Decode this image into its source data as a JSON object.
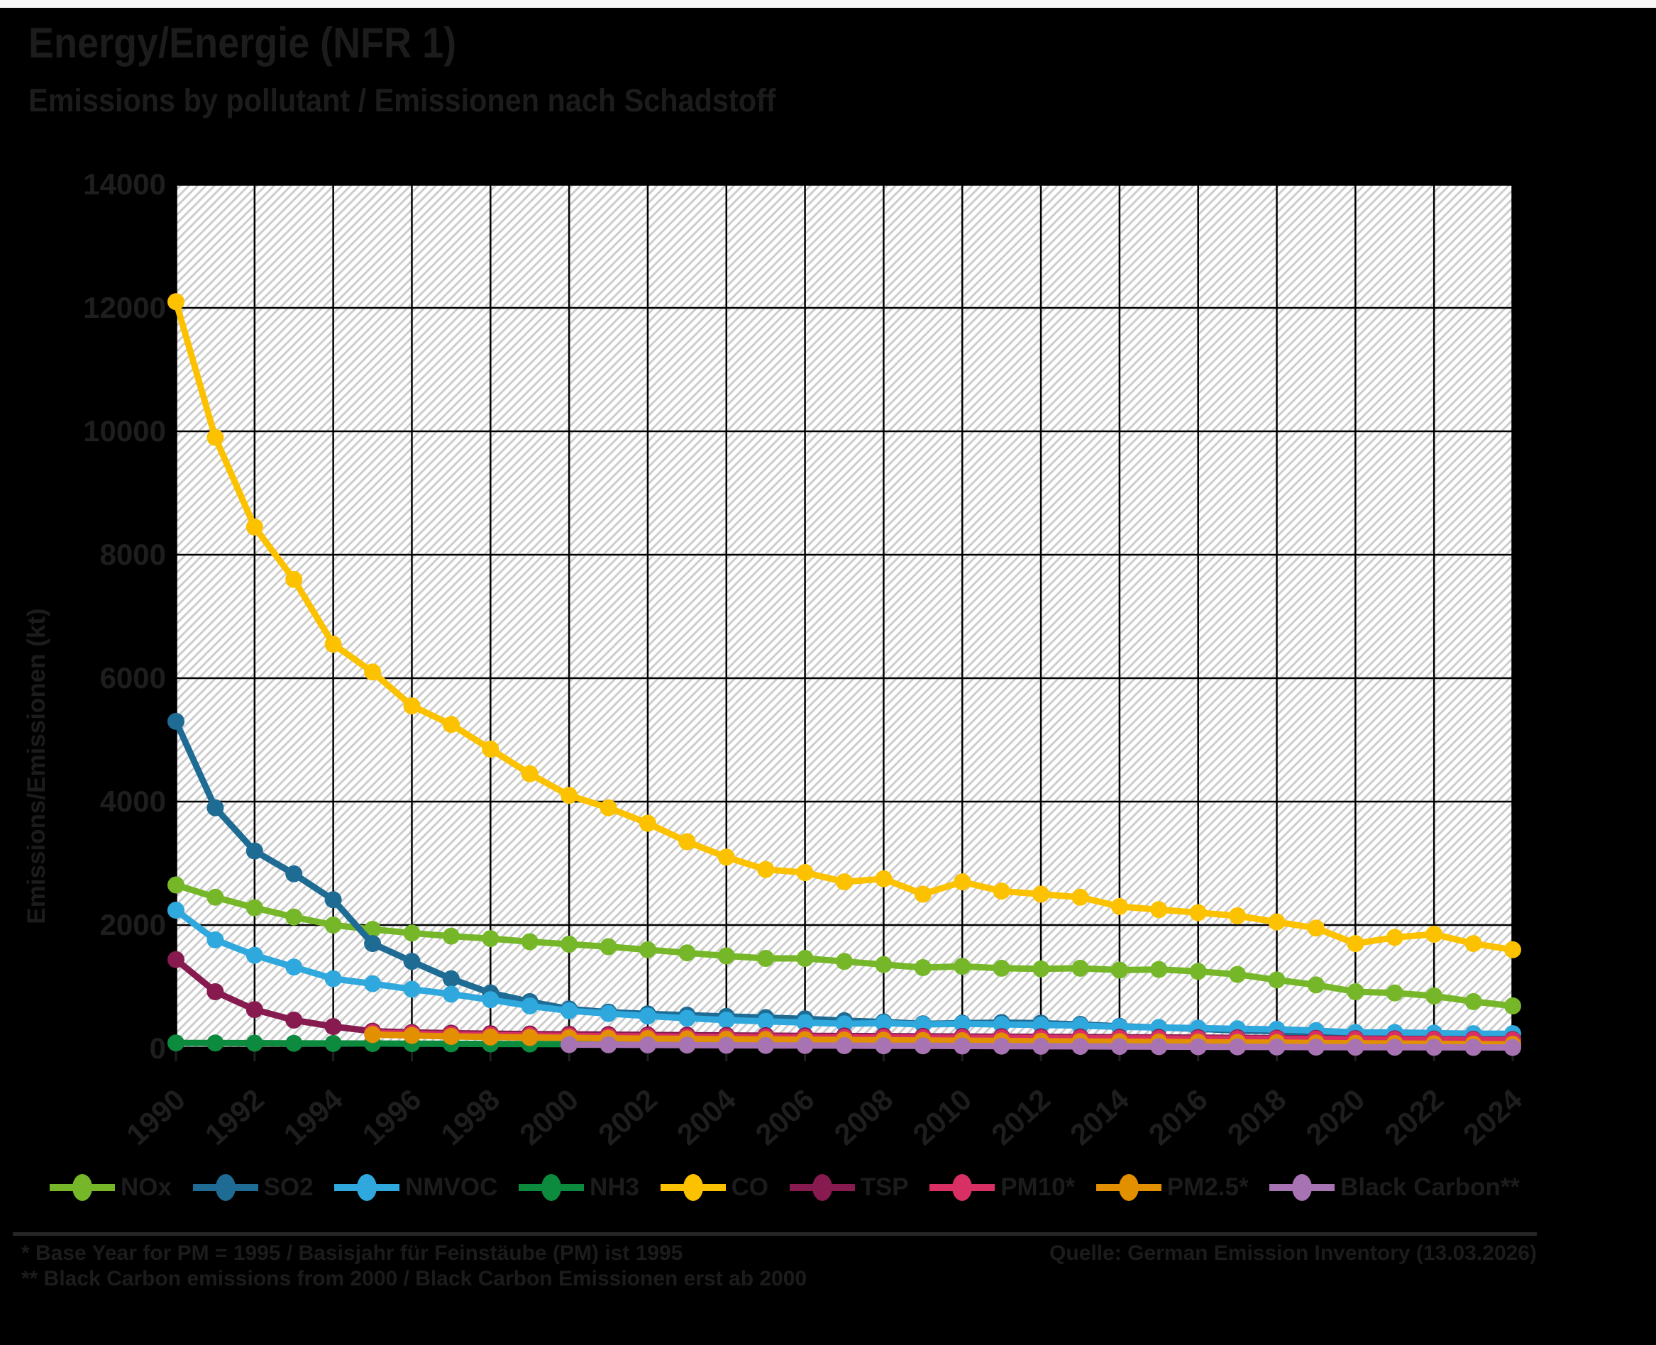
{
  "page": {
    "background": "#000000",
    "top_strip_color": "#f6f6f6",
    "text_color": "#1c1c1c"
  },
  "header": {
    "title": "Energy/Energie (NFR 1)",
    "subtitle": "Emissions by pollutant / Emissionen nach Schadstoff"
  },
  "chart_data": {
    "type": "line",
    "title": "Energy/Energie (NFR 1) — Emissions by pollutant / Emissionen nach Schadstoff",
    "xlabel": "",
    "ylabel": "Emissions/Emissionen (kt)",
    "ylim": [
      0,
      14000
    ],
    "ytick_step": 2000,
    "yticks": [
      0,
      2000,
      4000,
      6000,
      8000,
      10000,
      12000,
      14000
    ],
    "x_start": 1990,
    "x_end": 2024,
    "xtick_step": 2,
    "xticks": [
      1990,
      1992,
      1994,
      1996,
      1998,
      2000,
      2002,
      2004,
      2006,
      2008,
      2010,
      2012,
      2014,
      2016,
      2018,
      2020,
      2022,
      2024
    ],
    "grid": true,
    "plot_background": "white-with-gray-diagonal-hatch",
    "legend_position": "bottom",
    "series": [
      {
        "name": "NOx",
        "color": "#76b72a",
        "start_year": 1990,
        "values": [
          2650,
          2450,
          2280,
          2130,
          2000,
          1930,
          1870,
          1820,
          1780,
          1730,
          1690,
          1650,
          1600,
          1550,
          1500,
          1460,
          1460,
          1410,
          1360,
          1310,
          1330,
          1300,
          1290,
          1300,
          1270,
          1280,
          1250,
          1200,
          1110,
          1030,
          920,
          900,
          850,
          760,
          690
        ]
      },
      {
        "name": "SO2",
        "color": "#1e6b94",
        "start_year": 1990,
        "values": [
          5300,
          3900,
          3200,
          2830,
          2410,
          1700,
          1410,
          1130,
          900,
          760,
          640,
          590,
          560,
          540,
          520,
          500,
          480,
          450,
          430,
          400,
          410,
          420,
          410,
          390,
          360,
          340,
          320,
          290,
          280,
          230,
          200,
          210,
          220,
          160,
          150
        ]
      },
      {
        "name": "NMVOC",
        "color": "#2fa8dd",
        "start_year": 1990,
        "values": [
          2240,
          1760,
          1510,
          1320,
          1130,
          1050,
          960,
          880,
          790,
          690,
          610,
          565,
          525,
          490,
          460,
          440,
          420,
          400,
          410,
          390,
          400,
          390,
          380,
          370,
          350,
          340,
          330,
          320,
          310,
          290,
          260,
          260,
          250,
          240,
          240
        ]
      },
      {
        "name": "NH3",
        "color": "#0c8a3e",
        "start_year": 1990,
        "values": [
          90,
          88,
          86,
          84,
          82,
          80,
          78,
          76,
          74,
          72,
          70,
          68,
          66,
          64,
          62,
          60,
          58,
          57,
          56,
          55,
          54,
          53,
          52,
          51,
          50,
          49,
          48,
          47,
          46,
          45,
          44,
          43,
          42,
          41,
          40
        ]
      },
      {
        "name": "CO",
        "color": "#fcc200",
        "start_year": 1990,
        "values": [
          12100,
          9900,
          8450,
          7600,
          6550,
          6100,
          5550,
          5250,
          4850,
          4450,
          4100,
          3900,
          3650,
          3350,
          3100,
          2900,
          2850,
          2700,
          2750,
          2500,
          2700,
          2550,
          2500,
          2450,
          2300,
          2250,
          2200,
          2150,
          2050,
          1950,
          1700,
          1800,
          1850,
          1700,
          1600
        ]
      },
      {
        "name": "TSP",
        "color": "#871a4e",
        "start_year": 1990,
        "values": [
          1440,
          920,
          630,
          460,
          355,
          280,
          260,
          248,
          240,
          235,
          230,
          225,
          220,
          216,
          212,
          208,
          205,
          202,
          200,
          197,
          194,
          191,
          188,
          185,
          182,
          179,
          176,
          172,
          168,
          164,
          160,
          156,
          152,
          148,
          144
        ]
      },
      {
        "name": "PM10*",
        "color": "#d83064",
        "start_year": 1995,
        "values": [
          255,
          240,
          225,
          215,
          210,
          205,
          200,
          195,
          190,
          188,
          185,
          182,
          180,
          178,
          176,
          174,
          172,
          170,
          168,
          165,
          162,
          160,
          158,
          155,
          152,
          148,
          145,
          142,
          138,
          132
        ]
      },
      {
        "name": "PM2.5*",
        "color": "#e29000",
        "start_year": 1995,
        "values": [
          225,
          210,
          195,
          185,
          178,
          172,
          166,
          160,
          155,
          150,
          146,
          142,
          138,
          134,
          130,
          126,
          122,
          118,
          114,
          110,
          106,
          102,
          98,
          94,
          90,
          85,
          80,
          76,
          70,
          65
        ]
      },
      {
        "name": "Black Carbon**",
        "color": "#a873b2",
        "start_year": 2000,
        "values": [
          62,
          60,
          57,
          55,
          52,
          50,
          48,
          46,
          44,
          42,
          40,
          38,
          36,
          34,
          32,
          30,
          28,
          26,
          24,
          22,
          20,
          19,
          18,
          17,
          16
        ]
      }
    ]
  },
  "footer": {
    "note1": "* Base Year for PM = 1995 / Basisjahr für Feinstäube (PM) ist 1995",
    "note2": "** Black Carbon emissions from 2000 / Black Carbon Emissionen erst ab 2000",
    "source": "Quelle: German Emission Inventory (13.03.2026)"
  }
}
